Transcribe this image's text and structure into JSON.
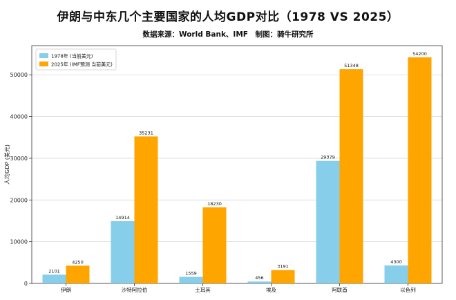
{
  "title": "伊朗与中东几个主要国家的人均GDP对比（1978 VS 2025）",
  "subtitle": "数据来源：World Bank、IMF　制图：骑牛研究所",
  "chart_data": {
    "type": "bar",
    "categories": [
      "伊朗",
      "沙特阿拉伯",
      "土耳其",
      "埃及",
      "阿联酋",
      "以色列"
    ],
    "series": [
      {
        "name": "1978年 (当前美元)",
        "color": "#87ceeb",
        "values": [
          2101,
          14914,
          1559,
          456,
          29379,
          4300
        ]
      },
      {
        "name": "2025年 (IMF预测 当前美元)",
        "color": "#ffa500",
        "values": [
          4250,
          35231,
          18230,
          3191,
          51348,
          54200
        ]
      }
    ],
    "ylabel": "人均GDP (美元)",
    "ylim": [
      0,
      57000
    ],
    "yticks": [
      0,
      10000,
      20000,
      30000,
      40000,
      50000
    ],
    "grid": "horizontal",
    "legend_position": "top-left"
  }
}
